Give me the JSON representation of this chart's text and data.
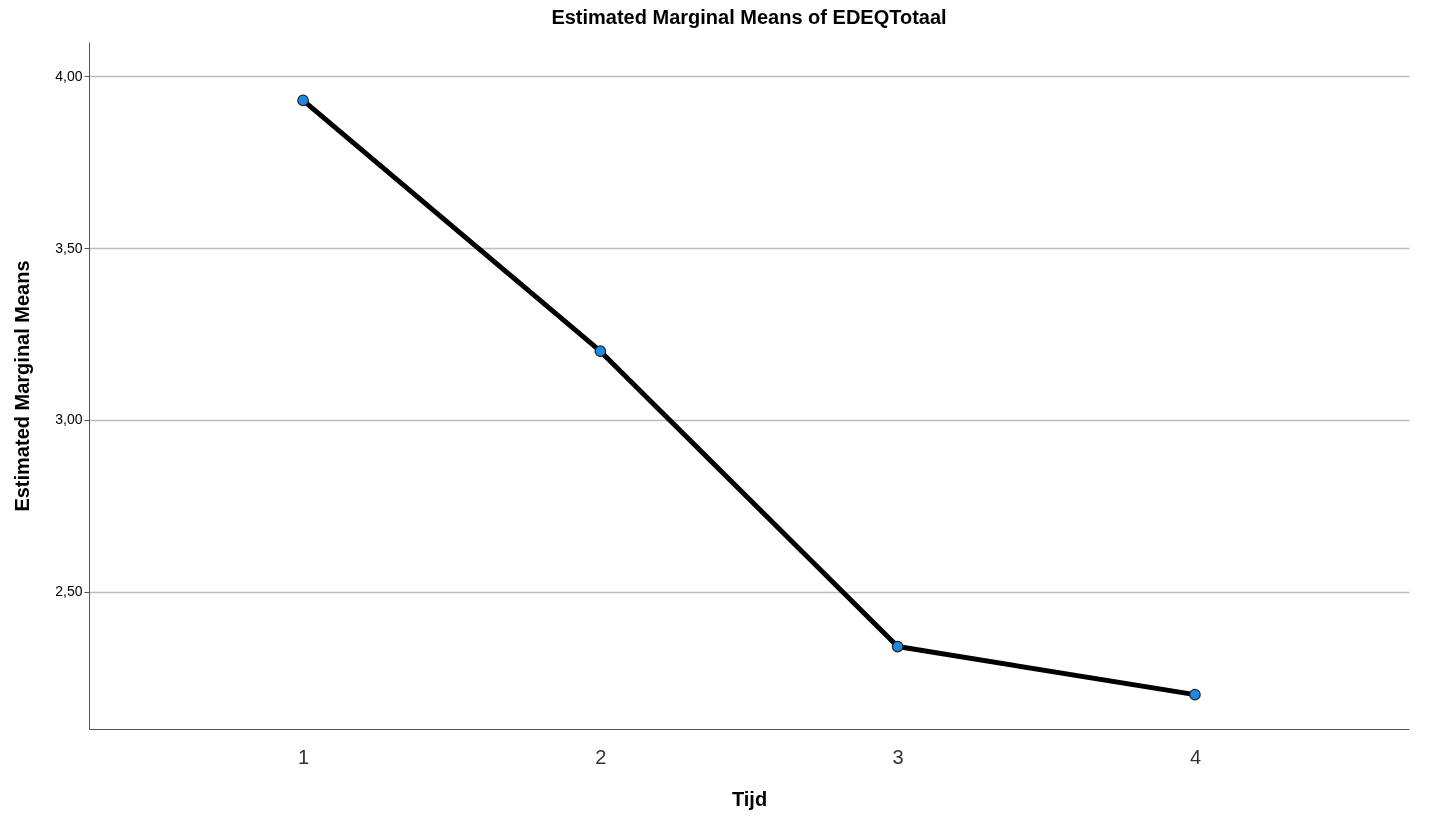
{
  "chart_data": {
    "type": "line",
    "title": "Estimated Marginal Means of EDEQTotaal",
    "xlabel": "Tijd",
    "ylabel": "Estimated Marginal Means",
    "categories": [
      "1",
      "2",
      "3",
      "4"
    ],
    "series": [
      {
        "color": "#000000",
        "values": [
          3.93,
          3.2,
          2.34,
          2.2
        ]
      }
    ],
    "ylim": [
      2.1,
      4.1
    ],
    "yticks": [
      {
        "value": 2.5,
        "label": "2,50"
      },
      {
        "value": 3,
        "label": "3,00"
      },
      {
        "value": 3.5,
        "label": "3,50"
      },
      {
        "value": 4,
        "label": "4,00"
      }
    ],
    "grid": "y",
    "marker": "circle",
    "line_style": "solid",
    "legend": false
  }
}
